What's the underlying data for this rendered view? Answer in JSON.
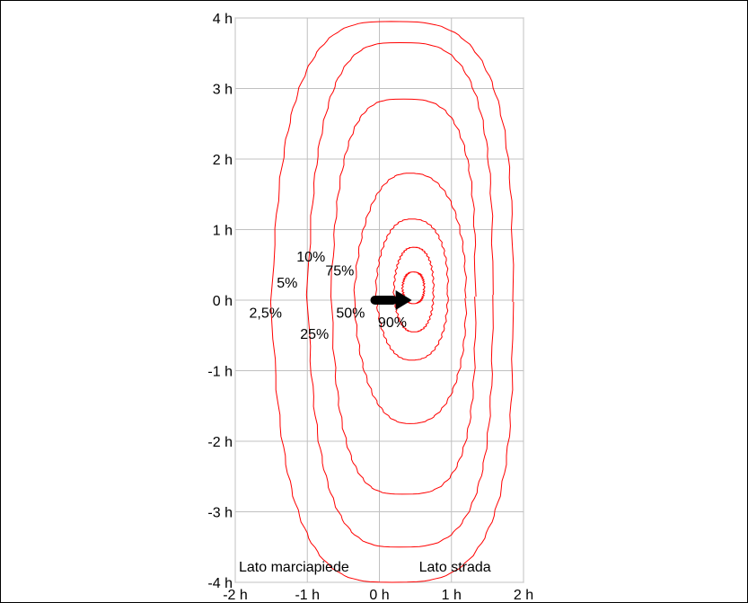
{
  "chart_data": {
    "type": "line",
    "title": "",
    "xlabel": "",
    "ylabel": "",
    "xlim": [
      -2,
      2
    ],
    "ylim": [
      -4,
      4
    ],
    "grid": true,
    "x_ticks": [
      {
        "value": -2,
        "label": "-2 h"
      },
      {
        "value": -1,
        "label": "-1 h"
      },
      {
        "value": 0,
        "label": "0 h"
      },
      {
        "value": 1,
        "label": "1 h"
      },
      {
        "value": 2,
        "label": "2 h"
      }
    ],
    "y_ticks": [
      {
        "value": 4,
        "label": "4 h"
      },
      {
        "value": 3,
        "label": "3 h"
      },
      {
        "value": 2,
        "label": "2 h"
      },
      {
        "value": 1,
        "label": "1 h"
      },
      {
        "value": 0,
        "label": "0 h"
      },
      {
        "value": -1,
        "label": "-1 h"
      },
      {
        "value": -2,
        "label": "-2 h"
      },
      {
        "value": -3,
        "label": "-3 h"
      },
      {
        "value": -4,
        "label": "-4 h"
      }
    ],
    "line_color": "#ff0000",
    "contours": [
      {
        "label": "2,5%",
        "label_at": [
          -1.58,
          -0.25
        ],
        "xmin": -1.5,
        "xmax": 1.85,
        "ymin": -4.0,
        "ymax": 3.95
      },
      {
        "label": "5%",
        "label_at": [
          -1.28,
          0.18
        ],
        "xmin": -1.0,
        "xmax": 1.57,
        "ymin": -3.5,
        "ymax": 3.65
      },
      {
        "label": "10%",
        "label_at": [
          -0.95,
          0.55
        ],
        "xmin": -0.67,
        "xmax": 1.33,
        "ymin": -2.75,
        "ymax": 2.85
      },
      {
        "label": "25%",
        "label_at": [
          -0.9,
          -0.55
        ],
        "xmin": -0.35,
        "xmax": 1.2,
        "ymin": -1.75,
        "ymax": 1.8
      },
      {
        "label": "50%",
        "label_at": [
          -0.4,
          -0.25
        ],
        "xmin": -0.05,
        "xmax": 0.95,
        "ymin": -0.85,
        "ymax": 1.15
      },
      {
        "label": "75%",
        "label_at": [
          -0.55,
          0.35
        ],
        "xmin": 0.2,
        "xmax": 0.75,
        "ymin": -0.45,
        "ymax": 0.75
      },
      {
        "label": "90%",
        "label_at": [
          0.18,
          -0.38
        ],
        "xmin": 0.32,
        "xmax": 0.62,
        "ymin": -0.05,
        "ymax": 0.4
      }
    ],
    "arrow": {
      "from": [
        -0.05,
        0.0
      ],
      "to": [
        0.45,
        0.0
      ],
      "color": "#000000"
    },
    "annotations": [
      {
        "text": "Lato marciapiede",
        "anchor": [
          -1.95,
          -3.85
        ]
      },
      {
        "text": "Lato strada",
        "anchor": [
          0.55,
          -3.85
        ]
      }
    ]
  }
}
